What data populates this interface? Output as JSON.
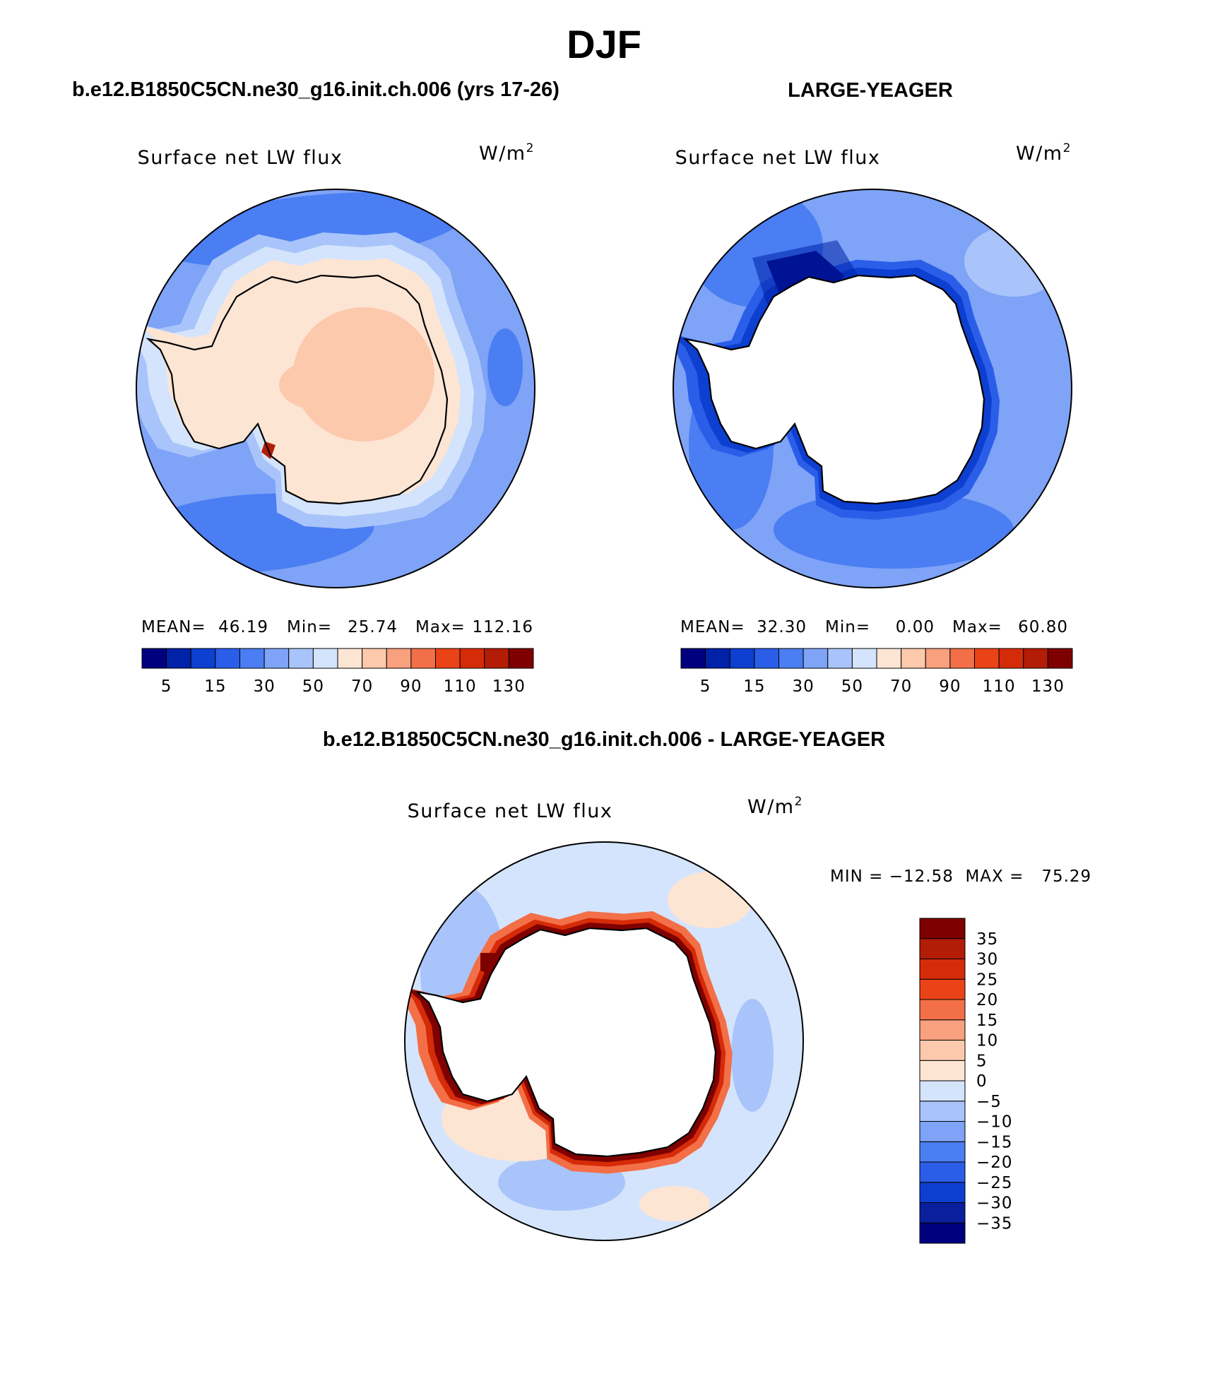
{
  "figure": {
    "title": "DJF",
    "top_left_header": "b.e12.B1850C5CN.ne30_g16.init.ch.006 (yrs 17-26)",
    "top_right_header": "LARGE-YEAGER",
    "bottom_header": "b.e12.B1850C5CN.ne30_g16.init.ch.006 - LARGE-YEAGER"
  },
  "colors": {
    "abs_scale": [
      "#00007f",
      "#0022a8",
      "#0d3fd0",
      "#2b5ee8",
      "#4a7ef2",
      "#7ea3f7",
      "#a9c4fa",
      "#d4e4fc",
      "#fde5d4",
      "#fcc9ad",
      "#f9a07e",
      "#f36f47",
      "#eb4318",
      "#d62b08",
      "#b31c06",
      "#7f0000"
    ],
    "diff_scale": [
      "#00007f",
      "#0a1f9c",
      "#0d3fd0",
      "#2b5ee8",
      "#4a7ef2",
      "#7ea3f7",
      "#a9c4fa",
      "#d4e4fc",
      "#fde5d4",
      "#fcc9ad",
      "#f9a07e",
      "#f36f47",
      "#eb4318",
      "#d62b08",
      "#b31c06",
      "#7f0000"
    ],
    "land_mask": "#ffffff",
    "coastline": "#000000"
  },
  "chart_data": [
    {
      "type": "heatmap",
      "projection": "south-polar-stereographic",
      "title": "Surface net LW flux",
      "units": "W/m",
      "units_superscript": "2",
      "stats": {
        "mean_label": "MEAN=",
        "mean": "46.19",
        "min_label": "Min=",
        "min": "25.74",
        "max_label": "Max=",
        "max": "112.16"
      },
      "colorbar": {
        "orientation": "horizontal",
        "ticks": [
          "5",
          "15",
          "30",
          "50",
          "70",
          "90",
          "110",
          "130"
        ]
      },
      "field_summary": {
        "open_ocean": "30–50",
        "sea_ice_margin": "50–70",
        "antarctic_interior": "70–90",
        "local_max_ross_coast": "110–130"
      }
    },
    {
      "type": "heatmap",
      "projection": "south-polar-stereographic",
      "title": "Surface net LW flux",
      "units": "W/m",
      "units_superscript": "2",
      "stats": {
        "mean_label": "MEAN=",
        "mean": "32.30",
        "min_label": "Min=",
        "min": "0.00",
        "max_label": "Max=",
        "max": "60.80"
      },
      "colorbar": {
        "orientation": "horizontal",
        "ticks": [
          "5",
          "15",
          "30",
          "50",
          "70",
          "90",
          "110",
          "130"
        ]
      },
      "field_summary": {
        "open_ocean": "30–50",
        "coastal_band": "5–30",
        "weddell_minimum": "0–5",
        "antarctica": "missing (white)"
      }
    },
    {
      "type": "heatmap",
      "projection": "south-polar-stereographic",
      "title": "Surface net LW flux",
      "units": "W/m",
      "units_superscript": "2",
      "stats_text": "MIN = −12.58  MAX =   75.29",
      "colorbar": {
        "orientation": "vertical",
        "ticks": [
          "35",
          "30",
          "25",
          "20",
          "15",
          "10",
          "5",
          "0",
          "−5",
          "−10",
          "−15",
          "−20",
          "−25",
          "−30",
          "−35"
        ]
      },
      "field_summary": {
        "open_ocean": "−10 to 5",
        "coastal_band": "20 to >35",
        "antarctica": "missing (white)"
      }
    }
  ]
}
